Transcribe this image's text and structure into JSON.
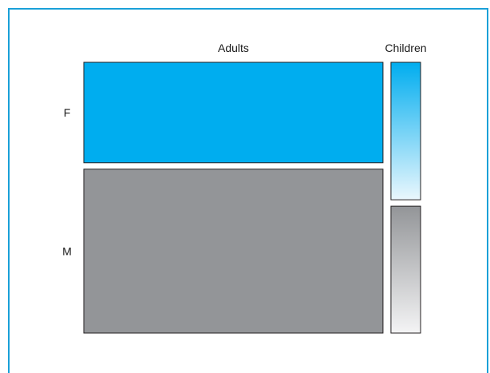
{
  "chart_data": {
    "type": "mosaic",
    "columns": [
      "Adults",
      "Children"
    ],
    "rows": [
      "F",
      "M"
    ],
    "column_proportions": [
      0.91,
      0.09
    ],
    "cell_proportions": {
      "Adults": {
        "F": 0.38,
        "M": 0.62
      },
      "Children": {
        "F": 0.52,
        "M": 0.48
      }
    },
    "colors": {
      "F": "#00adef",
      "M": "#939598",
      "F_fade": "#eaf7fd",
      "M_fade": "#f4f4f5",
      "outline": "#231f20",
      "frame": "#1aa0d8"
    },
    "grid": false,
    "legend": "none"
  }
}
